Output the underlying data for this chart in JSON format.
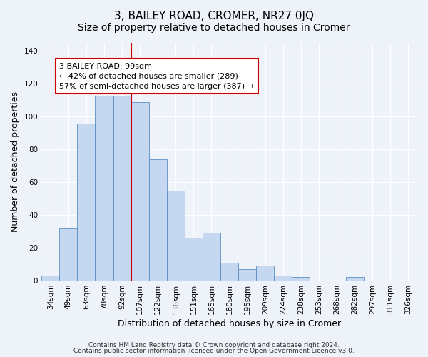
{
  "title": "3, BAILEY ROAD, CROMER, NR27 0JQ",
  "subtitle": "Size of property relative to detached houses in Cromer",
  "xlabel": "Distribution of detached houses by size in Cromer",
  "ylabel": "Number of detached properties",
  "bar_labels": [
    "34sqm",
    "49sqm",
    "63sqm",
    "78sqm",
    "92sqm",
    "107sqm",
    "122sqm",
    "136sqm",
    "151sqm",
    "165sqm",
    "180sqm",
    "195sqm",
    "209sqm",
    "224sqm",
    "238sqm",
    "253sqm",
    "268sqm",
    "282sqm",
    "297sqm",
    "311sqm",
    "326sqm"
  ],
  "bar_values": [
    3,
    32,
    96,
    113,
    113,
    109,
    74,
    55,
    26,
    29,
    11,
    7,
    9,
    3,
    2,
    0,
    0,
    2,
    0,
    0,
    0
  ],
  "bar_color": "#c5d8f0",
  "bar_edge_color": "#5b8ec4",
  "vline_x_index": 4,
  "vline_color": "#cc0000",
  "annotation_text": "3 BAILEY ROAD: 99sqm\n← 42% of detached houses are smaller (289)\n57% of semi-detached houses are larger (387) →",
  "annotation_box_color": "#ffffff",
  "annotation_box_edge_color": "#cc0000",
  "ylim": [
    0,
    145
  ],
  "yticks": [
    0,
    20,
    40,
    60,
    80,
    100,
    120,
    140
  ],
  "footer1": "Contains HM Land Registry data © Crown copyright and database right 2024.",
  "footer2": "Contains public sector information licensed under the Open Government Licence v3.0.",
  "bg_color": "#eef2f9",
  "title_fontsize": 11,
  "subtitle_fontsize": 10,
  "axis_label_fontsize": 9,
  "tick_fontsize": 7.5,
  "annotation_fontsize": 8,
  "footer_fontsize": 6.5
}
